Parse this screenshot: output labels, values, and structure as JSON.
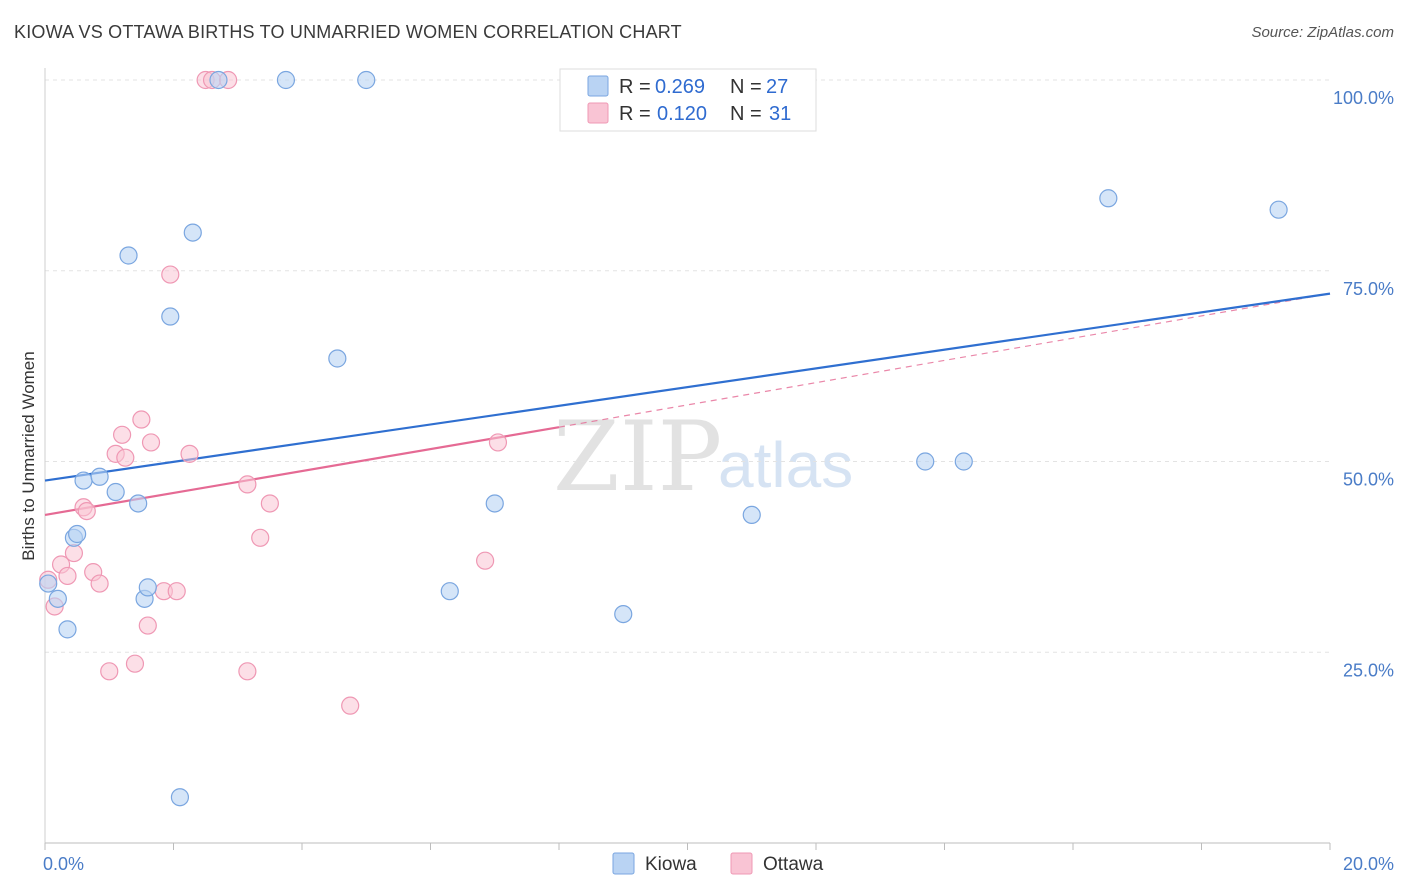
{
  "title": "KIOWA VS OTTAWA BIRTHS TO UNMARRIED WOMEN CORRELATION CHART",
  "source": "Source: ZipAtlas.com",
  "watermark": {
    "zip": "ZIP",
    "atlas": "atlas"
  },
  "colors": {
    "kiowa_fill": "#b9d3f3",
    "kiowa_stroke": "#7aa6e0",
    "kiowa_line": "#2f6fd0",
    "ottawa_fill": "#f9c4d4",
    "ottawa_stroke": "#ef98b4",
    "ottawa_line": "#e56a94",
    "grid": "#e3e3e3",
    "tick_label": "#4a7cc7"
  },
  "legend": {
    "rows": [
      {
        "r_label": "R =",
        "r_value": "0.269",
        "n_label": "N =",
        "n_value": "27"
      },
      {
        "r_label": "R =",
        "r_value": "0.120",
        "n_label": "N =",
        "n_value": "31"
      }
    ]
  },
  "bottom_legend": [
    "Kiowa",
    "Ottawa"
  ],
  "chart_data": {
    "type": "scatter",
    "title": "KIOWA VS OTTAWA BIRTHS TO UNMARRIED WOMEN CORRELATION CHART",
    "xlabel": "",
    "ylabel": "Births to Unmarried Women",
    "xlim": [
      0,
      20
    ],
    "ylim": [
      0,
      100
    ],
    "x_tick_labels": [
      "0.0%",
      "20.0%"
    ],
    "y_ticks": [
      25,
      50,
      75,
      100
    ],
    "y_tick_labels": [
      "25.0%",
      "50.0%",
      "75.0%",
      "100.0%"
    ],
    "series": [
      {
        "name": "Kiowa",
        "R": 0.269,
        "N": 27,
        "trend": {
          "x0": 0,
          "y0": 47.5,
          "x1": 20,
          "y1": 72.0
        },
        "points": [
          [
            0.05,
            34
          ],
          [
            0.2,
            32
          ],
          [
            0.35,
            28
          ],
          [
            0.45,
            40
          ],
          [
            0.5,
            40.5
          ],
          [
            0.6,
            47.5
          ],
          [
            0.85,
            48
          ],
          [
            1.1,
            46
          ],
          [
            1.3,
            77
          ],
          [
            1.45,
            44.5
          ],
          [
            1.55,
            32
          ],
          [
            1.6,
            33.5
          ],
          [
            1.95,
            69
          ],
          [
            2.1,
            6
          ],
          [
            2.3,
            80
          ],
          [
            2.7,
            100
          ],
          [
            3.75,
            100
          ],
          [
            4.55,
            63.5
          ],
          [
            5.0,
            100
          ],
          [
            6.3,
            33
          ],
          [
            7.0,
            44.5
          ],
          [
            9.0,
            30
          ],
          [
            11.0,
            43
          ],
          [
            13.7,
            50
          ],
          [
            14.3,
            50
          ],
          [
            16.55,
            84.5
          ],
          [
            19.2,
            83
          ]
        ]
      },
      {
        "name": "Ottawa",
        "R": 0.12,
        "N": 31,
        "trend": {
          "x0": 0,
          "y0": 43.0,
          "x1": 8.0,
          "y1": 54.5
        },
        "trend_dashed": {
          "x0": 8.0,
          "y0": 54.5,
          "x1": 20,
          "y1": 72.0
        },
        "points": [
          [
            0.05,
            34.5
          ],
          [
            0.15,
            31
          ],
          [
            0.25,
            36.5
          ],
          [
            0.35,
            35
          ],
          [
            0.45,
            38
          ],
          [
            0.6,
            44
          ],
          [
            0.65,
            43.5
          ],
          [
            0.75,
            35.5
          ],
          [
            0.85,
            34
          ],
          [
            1.0,
            22.5
          ],
          [
            1.1,
            51
          ],
          [
            1.2,
            53.5
          ],
          [
            1.25,
            50.5
          ],
          [
            1.4,
            23.5
          ],
          [
            1.5,
            55.5
          ],
          [
            1.6,
            28.5
          ],
          [
            1.65,
            52.5
          ],
          [
            1.85,
            33
          ],
          [
            1.95,
            74.5
          ],
          [
            2.05,
            33
          ],
          [
            2.25,
            51
          ],
          [
            2.5,
            100
          ],
          [
            2.6,
            100
          ],
          [
            2.85,
            100
          ],
          [
            3.15,
            22.5
          ],
          [
            3.15,
            47
          ],
          [
            3.35,
            40
          ],
          [
            3.5,
            44.5
          ],
          [
            4.75,
            18
          ],
          [
            6.85,
            37
          ],
          [
            7.05,
            52.5
          ]
        ]
      }
    ]
  }
}
